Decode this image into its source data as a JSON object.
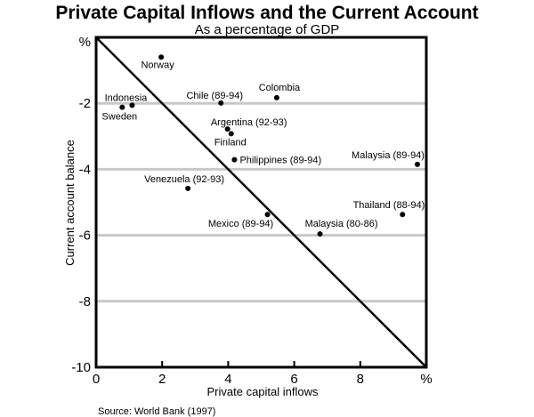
{
  "chart_data": {
    "type": "scatter",
    "title": "Private Capital Inflows and the Current Account",
    "subtitle": "As a percentage of GDP",
    "xlabel": "Private capital inflows",
    "ylabel": "Current account balance",
    "xlim": [
      0,
      10
    ],
    "ylim": [
      -10,
      0
    ],
    "x_ticks": [
      "0",
      "2",
      "4",
      "6",
      "8",
      "%"
    ],
    "y_ticks": [
      "%",
      "-2",
      "-4",
      "-6",
      "-8",
      "-10"
    ],
    "grid": "horizontal",
    "reference_line": {
      "from": [
        0,
        0
      ],
      "to": [
        10,
        -10
      ]
    },
    "points": [
      {
        "label": "Norway",
        "x": 1.97,
        "y": -0.6
      },
      {
        "label": "Indonesia",
        "x": 1.09,
        "y": -2.06
      },
      {
        "label": "Sweden",
        "x": 0.79,
        "y": -2.12
      },
      {
        "label": "Chile (89-94)",
        "x": 3.78,
        "y": -1.99
      },
      {
        "label": "Colombia",
        "x": 5.47,
        "y": -1.83
      },
      {
        "label": "Argentina (92-93)",
        "x": 3.98,
        "y": -2.78
      },
      {
        "label": "Finland",
        "x": 4.09,
        "y": -2.92
      },
      {
        "label": "Philippines (89-94)",
        "x": 4.19,
        "y": -3.71
      },
      {
        "label": "Malaysia (89-94)",
        "x": 9.73,
        "y": -3.85
      },
      {
        "label": "Venezuela (92-93)",
        "x": 2.78,
        "y": -4.58
      },
      {
        "label": "Thailand (88-94)",
        "x": 9.28,
        "y": -5.37
      },
      {
        "label": "Mexico (89-94)",
        "x": 5.19,
        "y": -5.37
      },
      {
        "label": "Malaysia (80-86)",
        "x": 6.78,
        "y": -5.96
      }
    ],
    "source": "Source: World Bank (1997)"
  }
}
